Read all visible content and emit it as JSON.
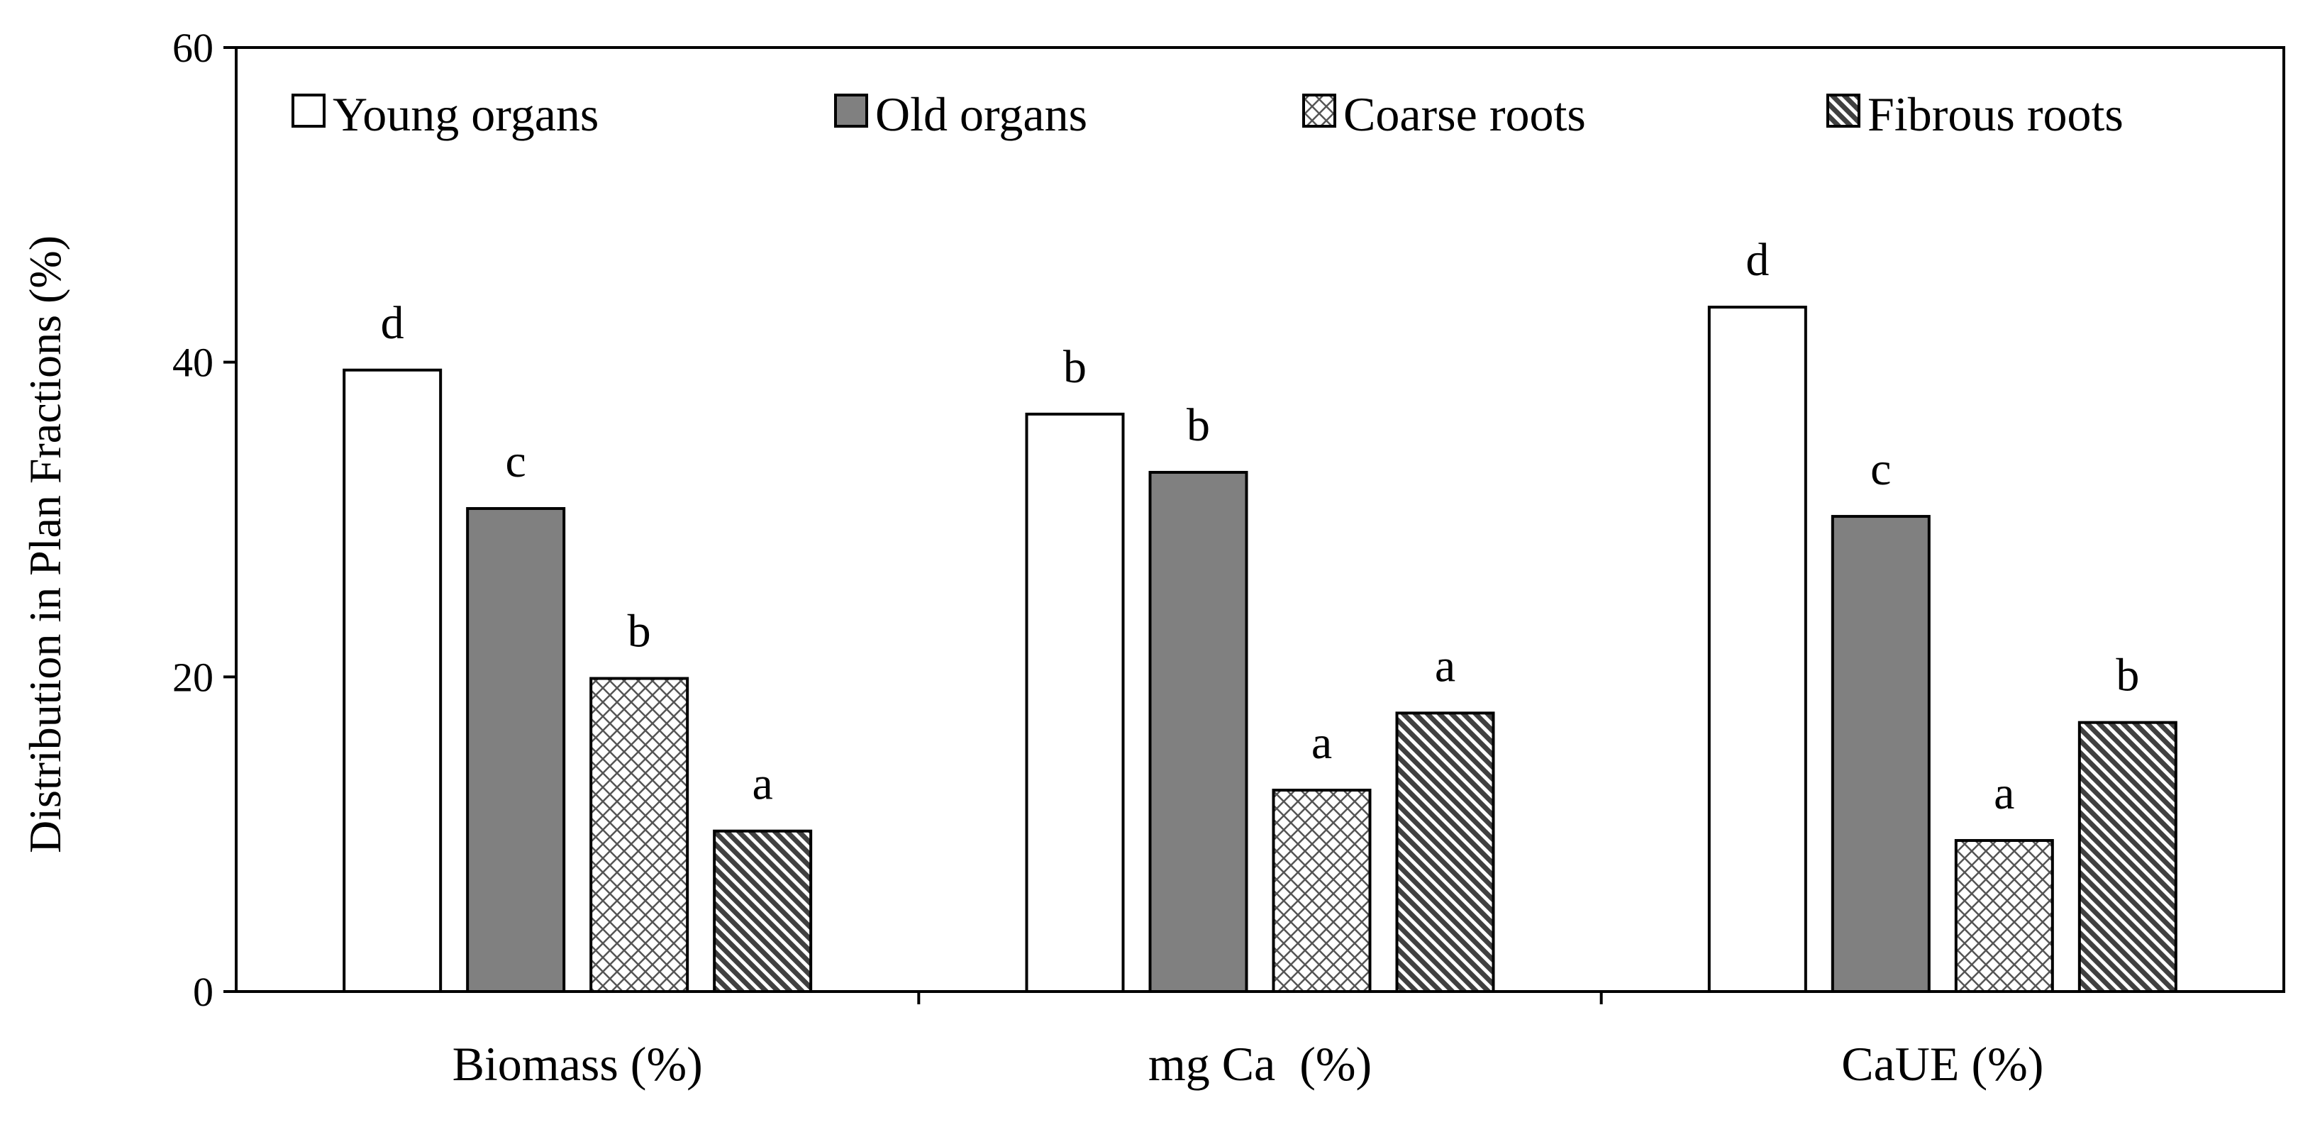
{
  "chart_data": {
    "type": "bar",
    "title": "",
    "xlabel": "",
    "ylabel": "Distribution in Plan Fractions (%)",
    "ylim": [
      0,
      60
    ],
    "yticks": [
      0,
      20,
      40,
      60
    ],
    "grid": false,
    "legend_position": "top",
    "categories": [
      "Biomass (%)",
      "mg Ca  (%)",
      "CaUE (%)"
    ],
    "series": [
      {
        "name": "Young organs",
        "pattern": "solid-white",
        "values": [
          39.5,
          36.7,
          43.5
        ],
        "labels": [
          "d",
          "b",
          "d"
        ]
      },
      {
        "name": "Old organs",
        "pattern": "solid-gray",
        "values": [
          30.7,
          33.0,
          30.2
        ],
        "labels": [
          "c",
          "b",
          "c"
        ]
      },
      {
        "name": "Coarse roots",
        "pattern": "crosshatch",
        "values": [
          19.9,
          12.8,
          9.6
        ],
        "labels": [
          "b",
          "a",
          "a"
        ]
      },
      {
        "name": "Fibrous roots",
        "pattern": "diagonal",
        "values": [
          10.2,
          17.7,
          17.1
        ],
        "labels": [
          "a",
          "a",
          "b"
        ]
      }
    ]
  },
  "colors": {
    "young": "#ffffff",
    "old": "#808080",
    "stroke": "#000000",
    "pattern_line": "#404040"
  }
}
